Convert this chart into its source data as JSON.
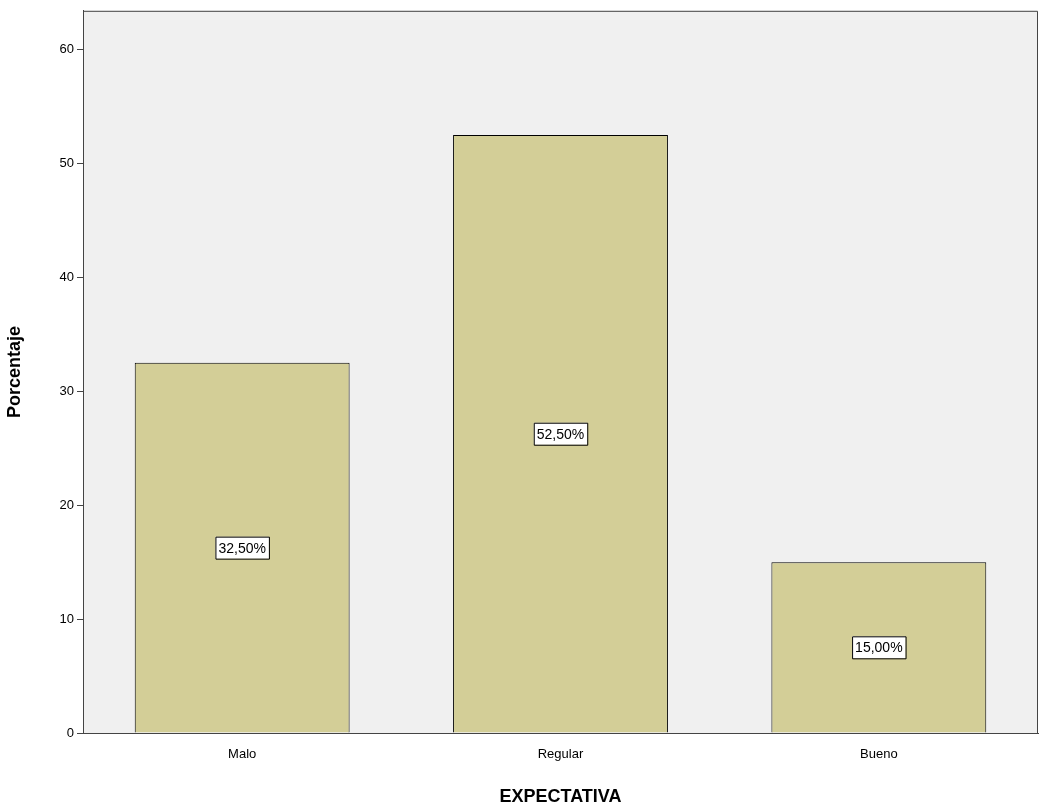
{
  "chart_data": {
    "type": "bar",
    "xlabel": "EXPECTATIVA",
    "ylabel": "Porcentaje",
    "categories": [
      "Malo",
      "Regular",
      "Bueno"
    ],
    "values": [
      32.5,
      52.5,
      15
    ],
    "value_labels": [
      "32,50%",
      "52,50%",
      "15,00%"
    ],
    "color": "#d3ce97",
    "ylim": [
      0,
      63.4
    ],
    "yticks": [
      0,
      10,
      20,
      30,
      40,
      50,
      60
    ],
    "legend": false
  }
}
